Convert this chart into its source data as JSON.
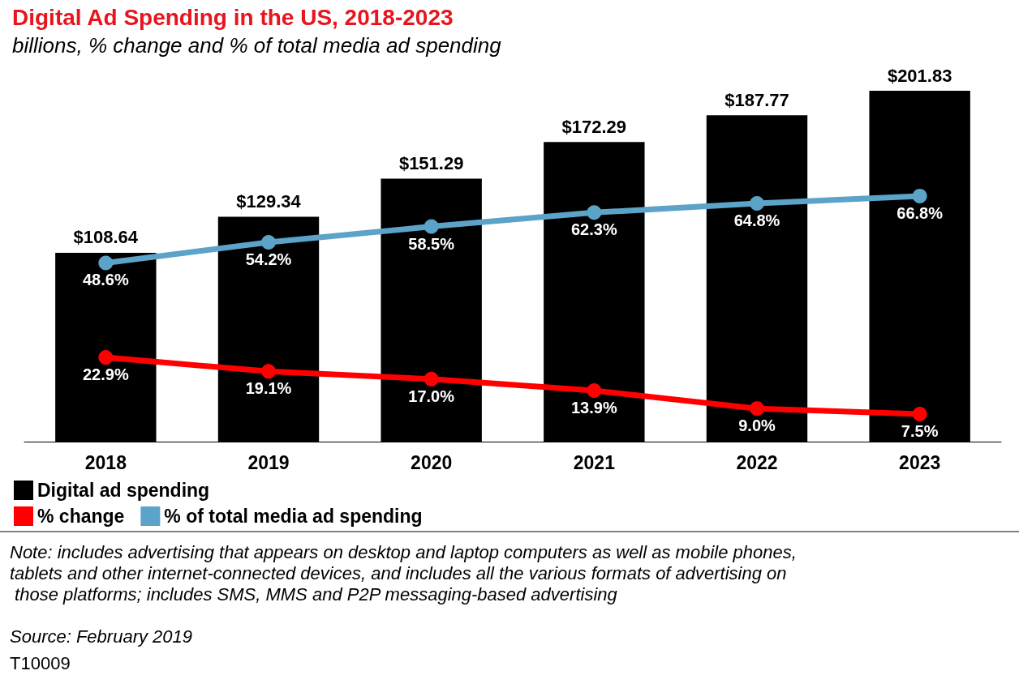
{
  "chart_data": {
    "type": "bar",
    "title": "Digital Ad Spending in the US, 2018-2023",
    "subtitle": "billions, % change and % of total media ad spending",
    "categories": [
      "2018",
      "2019",
      "2020",
      "2021",
      "2022",
      "2023"
    ],
    "series": [
      {
        "name": "Digital ad spending",
        "color": "#000000",
        "values": [
          108.64,
          129.34,
          151.29,
          172.29,
          187.77,
          201.83
        ],
        "value_labels": [
          "$108.64",
          "$129.34",
          "$151.29",
          "$172.29",
          "$187.77",
          "$201.83"
        ]
      },
      {
        "name": "% change",
        "type": "line",
        "axis": "y2",
        "color": "#ff0000",
        "values": [
          22.9,
          19.1,
          17.0,
          13.9,
          9.0,
          7.5
        ],
        "value_labels": [
          "22.9%",
          "19.1%",
          "17.0%",
          "13.9%",
          "9.0%",
          "7.5%"
        ]
      },
      {
        "name": "% of total media ad spending",
        "type": "line",
        "axis": "y2",
        "color": "#5ba3c8",
        "values": [
          48.6,
          54.2,
          58.5,
          62.3,
          64.8,
          66.8
        ],
        "value_labels": [
          "48.6%",
          "54.2%",
          "58.5%",
          "62.3%",
          "64.8%",
          "66.8%"
        ]
      }
    ],
    "marker": "circle",
    "grid": false,
    "legend": "bottom left",
    "tick_labels": "x",
    "annotations": [
      "Note: includes advertising that appears on desktop and laptop computers as well as mobile phones, tablets and other internet-connected devices, and includes all the various formats of advertising on those platforms; includes SMS, MMS and P2P messaging-based advertising",
      "Source: February 2019",
      "T10009"
    ]
  }
}
